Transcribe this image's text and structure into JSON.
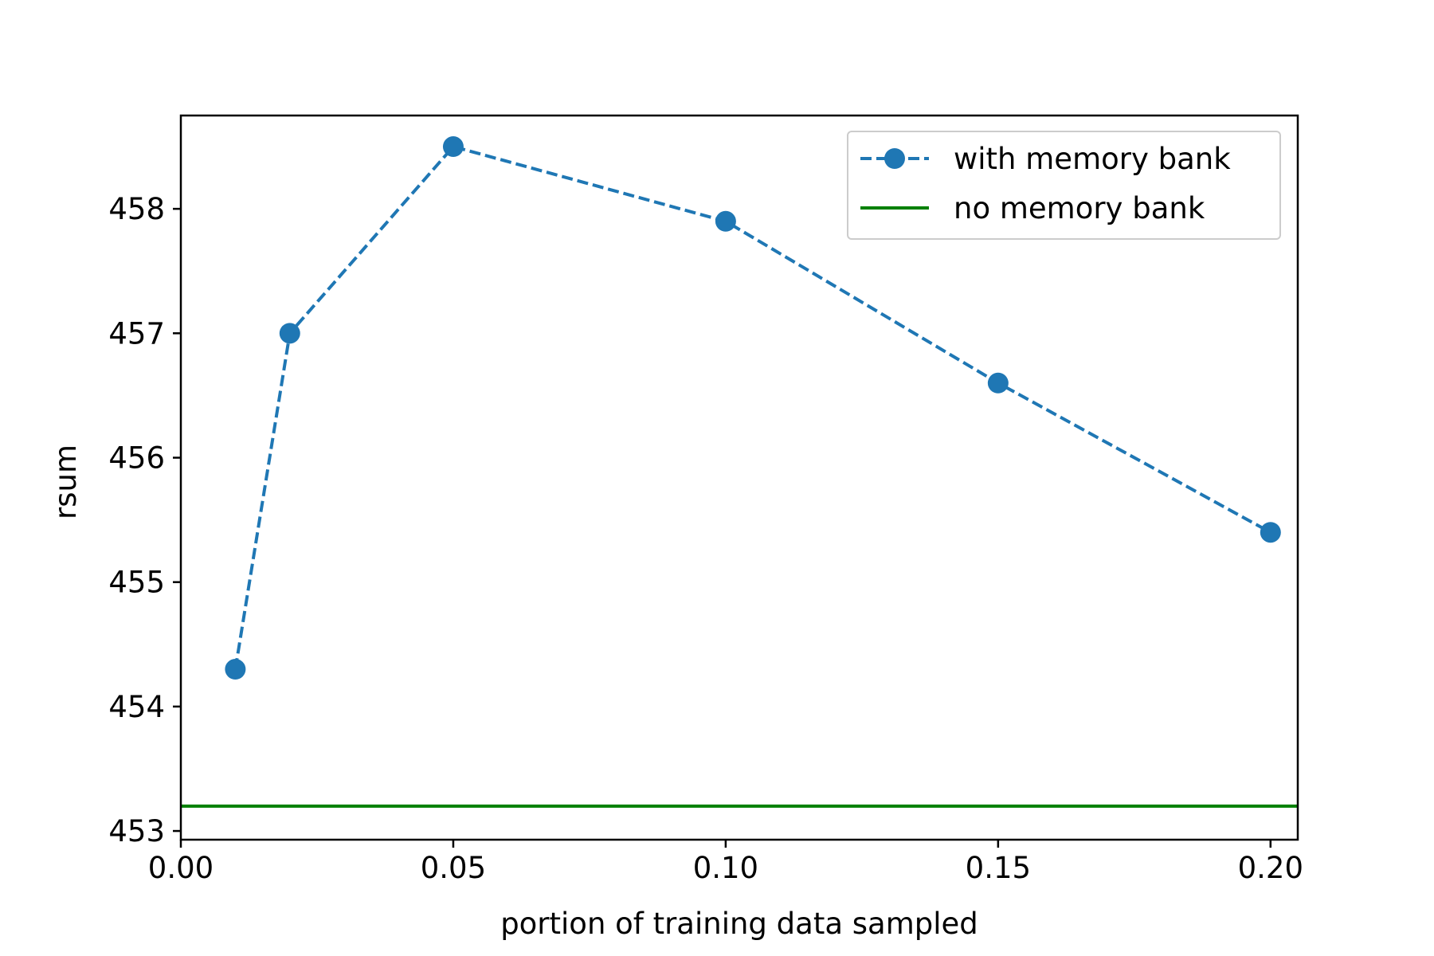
{
  "chart_data": {
    "type": "line",
    "title": "",
    "xlabel": "portion of training data sampled",
    "ylabel": "rsum",
    "xlim": [
      0.0,
      0.205
    ],
    "ylim": [
      452.93,
      458.75
    ],
    "xticks": [
      0.0,
      0.05,
      0.1,
      0.15,
      0.2
    ],
    "xtick_labels": [
      "0.00",
      "0.05",
      "0.10",
      "0.15",
      "0.20"
    ],
    "yticks": [
      453,
      454,
      455,
      456,
      457,
      458
    ],
    "ytick_labels": [
      "453",
      "454",
      "455",
      "456",
      "457",
      "458"
    ],
    "grid": false,
    "legend_position": "top-right",
    "series": [
      {
        "name": "with memory bank",
        "style": "dashed-with-circle-markers",
        "color": "#1f77b4",
        "x": [
          0.01,
          0.02,
          0.05,
          0.1,
          0.15,
          0.2
        ],
        "y": [
          454.3,
          457.0,
          458.5,
          457.9,
          456.6,
          455.4
        ]
      },
      {
        "name": "no memory bank",
        "style": "solid-horizontal-line",
        "color": "#008000",
        "y": 453.2
      }
    ]
  }
}
